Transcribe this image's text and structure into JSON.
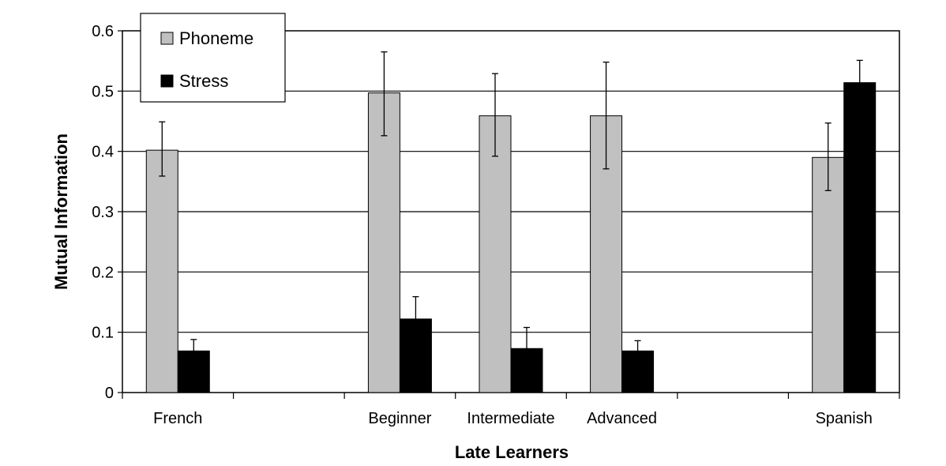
{
  "chart_data": {
    "type": "bar",
    "title": "",
    "xlabel": "Late Learners",
    "ylabel": "Mutual Information",
    "ylim": [
      0,
      0.6
    ],
    "yticks": [
      "0",
      "0.1",
      "0.2",
      "0.3",
      "0.4",
      "0.5",
      "0.6"
    ],
    "grid": true,
    "legend_position": "top-left",
    "categories": [
      "French",
      "",
      "Beginner",
      "Intermediate",
      "Advanced",
      "",
      "Spanish"
    ],
    "series": [
      {
        "name": "Phoneme",
        "color": "#c0c0c0",
        "values": [
          0.402,
          null,
          0.497,
          0.459,
          0.459,
          null,
          0.39
        ],
        "error_low": [
          0.359,
          null,
          0.426,
          0.392,
          0.371,
          null,
          0.335
        ],
        "error_high": [
          0.449,
          null,
          0.565,
          0.529,
          0.548,
          null,
          0.447
        ]
      },
      {
        "name": "Stress",
        "color": "#000000",
        "values": [
          0.069,
          null,
          0.122,
          0.073,
          0.069,
          null,
          0.514
        ],
        "error_low": [
          0.069,
          null,
          0.122,
          0.073,
          0.069,
          null,
          0.514
        ],
        "error_high": [
          0.088,
          null,
          0.159,
          0.108,
          0.086,
          null,
          0.551
        ]
      }
    ]
  }
}
